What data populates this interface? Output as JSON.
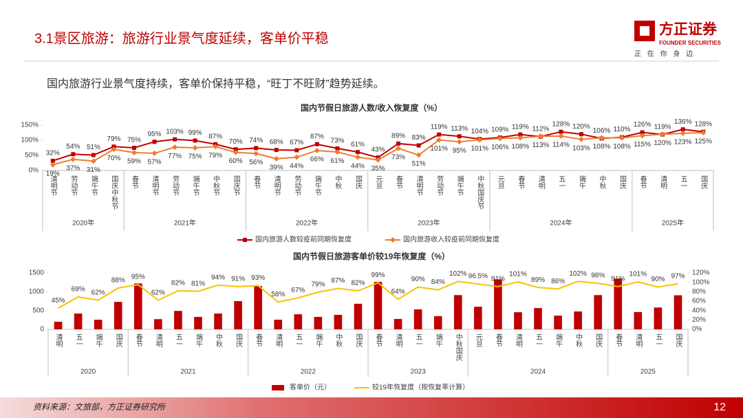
{
  "header": {
    "title": "3.1景区旅游：旅游行业景气度延续，客单价平稳",
    "logo": "方正证券",
    "logo_en": "FOUNDER SECURITIES",
    "slogan": "正 在 你 身 边"
  },
  "summary": "国内旅游行业景气度持续，客单价保持平稳，“旺丁不旺财”趋势延续。",
  "chart_data": [
    {
      "type": "line",
      "title": "国内节假日旅游人数/收入恢复度（%）",
      "category_groups": [
        {
          "label": "2020年",
          "categories": [
            "清明节",
            "劳动节",
            "端午节",
            "国庆中秋节"
          ]
        },
        {
          "label": "2021年",
          "categories": [
            "春节",
            "清明节",
            "劳动节",
            "端午节",
            "中秋节",
            "国庆节"
          ]
        },
        {
          "label": "2022年",
          "categories": [
            "春节",
            "清明节",
            "劳动节",
            "端午节",
            "中秋",
            "国庆"
          ]
        },
        {
          "label": "2023年",
          "categories": [
            "元旦",
            "春节",
            "清明节",
            "劳动节",
            "端午节",
            "中秋国庆节"
          ]
        },
        {
          "label": "2024年",
          "categories": [
            "元旦",
            "春节",
            "清明",
            "五一",
            "端午",
            "中秋",
            "国庆"
          ]
        },
        {
          "label": "2025年",
          "categories": [
            "春节",
            "清明",
            "五一",
            "国庆"
          ]
        }
      ],
      "series": [
        {
          "name": "国内旅游人数较疫前同期恢复度",
          "color": "#c00000",
          "marker": "square",
          "values": [
            32,
            54,
            51,
            79,
            75,
            95,
            103,
            99,
            87,
            70,
            74,
            68,
            67,
            87,
            73,
            61,
            43,
            89,
            83,
            119,
            113,
            104,
            109,
            119,
            112,
            128,
            120,
            106,
            110,
            126,
            119,
            136,
            128
          ],
          "value_labels": [
            "32%",
            "54%",
            "51%",
            "79%",
            "75%",
            "95%",
            "103%",
            "99%",
            "87%",
            "70%",
            "74%",
            "68%",
            "67%",
            "87%",
            "73%",
            "61%",
            "43%",
            "89%",
            "83%",
            "119%",
            "113%",
            "104%",
            "109%",
            "119%",
            "112%",
            "128%",
            "120%",
            "106%",
            "110%",
            "126%",
            "119%",
            "136%",
            "128%"
          ]
        },
        {
          "name": "国内旅游收入较疫前同期恢复度",
          "color": "#ed7d31",
          "marker": "diamond",
          "values": [
            19,
            37,
            31,
            70,
            59,
            57,
            77,
            75,
            79,
            60,
            56,
            39,
            44,
            66,
            61,
            44,
            35,
            73,
            51,
            101,
            95,
            101,
            106,
            108,
            113,
            114,
            103,
            108,
            108,
            115,
            120,
            123,
            125
          ],
          "value_labels": [
            "19%",
            "37%",
            "31%",
            "70%",
            "59%",
            "57%",
            "77%",
            "75%",
            "79%",
            "60%",
            "56%",
            "39%",
            "44%",
            "66%",
            "61%",
            "44%",
            "35%",
            "73%",
            "51%",
            "101%",
            "95%",
            "101%",
            "106%",
            "108%",
            "113%",
            "114%",
            "103%",
            "108%",
            "108%",
            "115%",
            "120%",
            "123%",
            "125%"
          ]
        }
      ],
      "ylim": [
        0,
        150
      ],
      "yticks": [
        {
          "value": 0,
          "label": "0%"
        },
        {
          "value": 50,
          "label": "50%"
        },
        {
          "value": 100,
          "label": "100%"
        },
        {
          "value": 150,
          "label": "150%"
        }
      ],
      "grid": false,
      "legend": "bottom"
    },
    {
      "type": "combo",
      "title": "国内节假日旅游客单价较19年恢复度（%）",
      "category_groups": [
        {
          "label": "2020",
          "categories": [
            "清明",
            "五一",
            "端午",
            "国庆"
          ]
        },
        {
          "label": "2021",
          "categories": [
            "春节",
            "清明",
            "五一",
            "端午",
            "中秋",
            "国庆"
          ]
        },
        {
          "label": "2022",
          "categories": [
            "春节",
            "清明",
            "五一",
            "端午",
            "中秋",
            "国庆"
          ]
        },
        {
          "label": "2023",
          "categories": [
            "春节",
            "清明",
            "五一",
            "端午",
            "中秋国庆"
          ]
        },
        {
          "label": "2024",
          "categories": [
            "元旦",
            "春节",
            "清明",
            "五一",
            "端午",
            "中秋",
            "国庆"
          ]
        },
        {
          "label": "2025",
          "categories": [
            "春节",
            "清明",
            "五一",
            "国庆"
          ]
        }
      ],
      "series": [
        {
          "name": "客单价（元）",
          "type": "bar",
          "color": "#c00000",
          "values": [
            200,
            420,
            255,
            730,
            1220,
            270,
            490,
            330,
            420,
            750,
            1150,
            255,
            400,
            330,
            385,
            680,
            1260,
            275,
            530,
            350,
            910,
            600,
            1330,
            455,
            565,
            365,
            475,
            910,
            1350,
            460,
            580,
            905
          ]
        },
        {
          "name": "较19年恢复度（按恢复率计算）",
          "type": "line",
          "axis": "y2",
          "color": "#f5c400",
          "values": [
            45,
            69,
            62,
            88,
            95,
            62,
            82,
            81,
            94,
            91,
            93,
            58,
            67,
            79,
            87,
            82,
            99,
            64,
            90,
            84,
            102,
            96.5,
            91,
            101,
            89,
            86,
            102,
            98,
            91,
            101,
            90,
            97
          ],
          "value_labels": [
            "45%",
            "69%",
            "62%",
            "88%",
            "95%",
            "62%",
            "82%",
            "81%",
            "94%",
            "91%",
            "93%",
            "58%",
            "67%",
            "79%",
            "87%",
            "82%",
            "99%",
            "64%",
            "90%",
            "84%",
            "102%",
            "96.5%",
            "91%",
            "101%",
            "89%",
            "86%",
            "102%",
            "98%",
            "91%",
            "101%",
            "90%",
            "97%"
          ]
        }
      ],
      "ylim": [
        0,
        1500
      ],
      "yticks": [
        0,
        500,
        1000,
        1500
      ],
      "y2lim": [
        0,
        120
      ],
      "y2ticks": [
        {
          "value": 0,
          "label": "0%"
        },
        {
          "value": 20,
          "label": "20%"
        },
        {
          "value": 40,
          "label": "40%"
        },
        {
          "value": 60,
          "label": "60%"
        },
        {
          "value": 80,
          "label": "80%"
        },
        {
          "value": 100,
          "label": "100%"
        },
        {
          "value": 120,
          "label": "120%"
        }
      ],
      "grid": false,
      "legend": "bottom"
    }
  ],
  "footer": {
    "source": "资料来源：文旅部，方正证券研究所",
    "page": "12"
  }
}
